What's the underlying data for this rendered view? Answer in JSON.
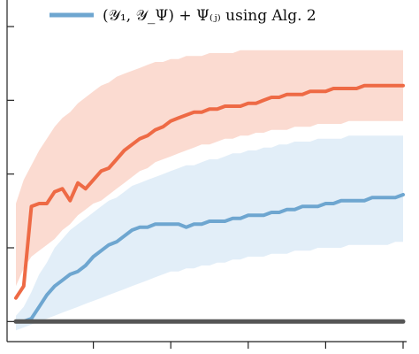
{
  "chart_data": {
    "type": "line",
    "title": "",
    "xlabel": "",
    "ylabel": "",
    "x": [
      0,
      1,
      2,
      3,
      4,
      5,
      6,
      7,
      8,
      9,
      10,
      11,
      12,
      13,
      14,
      15,
      16,
      17,
      18,
      19,
      20,
      21,
      22,
      23,
      24,
      25,
      26,
      27,
      28,
      29,
      30,
      31,
      32,
      33,
      34,
      35,
      36,
      37,
      38,
      39,
      40,
      41,
      42,
      43,
      44,
      45,
      46,
      47,
      48,
      49,
      50
    ],
    "xlim": [
      0,
      50
    ],
    "ylim": [
      -0.05,
      1.0
    ],
    "grid": false,
    "legend": "top",
    "series": [
      {
        "name": "",
        "color": "#ee6a45",
        "band_color": "#f9c3b2",
        "values": [
          0.08,
          0.12,
          0.39,
          0.4,
          0.4,
          0.44,
          0.45,
          0.41,
          0.47,
          0.45,
          0.48,
          0.51,
          0.52,
          0.55,
          0.58,
          0.6,
          0.62,
          0.63,
          0.65,
          0.66,
          0.68,
          0.69,
          0.7,
          0.71,
          0.71,
          0.72,
          0.72,
          0.73,
          0.73,
          0.73,
          0.74,
          0.74,
          0.75,
          0.76,
          0.76,
          0.77,
          0.77,
          0.77,
          0.78,
          0.78,
          0.78,
          0.79,
          0.79,
          0.79,
          0.79,
          0.8,
          0.8,
          0.8,
          0.8,
          0.8,
          0.8
        ],
        "lower": [
          0.12,
          0.18,
          0.22,
          0.24,
          0.26,
          0.28,
          0.31,
          0.33,
          0.36,
          0.38,
          0.4,
          0.41,
          0.43,
          0.45,
          0.47,
          0.49,
          0.51,
          0.52,
          0.54,
          0.55,
          0.56,
          0.57,
          0.58,
          0.59,
          0.6,
          0.6,
          0.61,
          0.62,
          0.62,
          0.63,
          0.63,
          0.64,
          0.64,
          0.65,
          0.65,
          0.65,
          0.66,
          0.66,
          0.66,
          0.67,
          0.67,
          0.67,
          0.67,
          0.68,
          0.68,
          0.68,
          0.68,
          0.68,
          0.68,
          0.68,
          0.68
        ],
        "upper": [
          0.4,
          0.48,
          0.53,
          0.58,
          0.62,
          0.66,
          0.69,
          0.71,
          0.74,
          0.76,
          0.78,
          0.8,
          0.81,
          0.83,
          0.84,
          0.85,
          0.86,
          0.87,
          0.88,
          0.88,
          0.89,
          0.89,
          0.9,
          0.9,
          0.9,
          0.91,
          0.91,
          0.91,
          0.91,
          0.92,
          0.92,
          0.92,
          0.92,
          0.92,
          0.92,
          0.92,
          0.92,
          0.92,
          0.92,
          0.92,
          0.92,
          0.92,
          0.92,
          0.92,
          0.92,
          0.92,
          0.92,
          0.92,
          0.92,
          0.92,
          0.92
        ]
      },
      {
        "name": "(𝒴₁, 𝒴_Ψ) + Ψ₍ⱼ₎ using Alg. 2",
        "color": "#6ea6d0",
        "band_color": "#cfe3f3",
        "values": [
          0.0,
          0.0,
          0.01,
          0.05,
          0.09,
          0.12,
          0.14,
          0.16,
          0.17,
          0.19,
          0.22,
          0.24,
          0.26,
          0.27,
          0.29,
          0.31,
          0.32,
          0.32,
          0.33,
          0.33,
          0.33,
          0.33,
          0.32,
          0.33,
          0.33,
          0.34,
          0.34,
          0.34,
          0.35,
          0.35,
          0.36,
          0.36,
          0.36,
          0.37,
          0.37,
          0.38,
          0.38,
          0.39,
          0.39,
          0.39,
          0.4,
          0.4,
          0.41,
          0.41,
          0.41,
          0.41,
          0.42,
          0.42,
          0.42,
          0.42,
          0.43
        ],
        "lower": [
          -0.03,
          -0.02,
          -0.01,
          0.0,
          0.01,
          0.02,
          0.03,
          0.04,
          0.05,
          0.06,
          0.07,
          0.08,
          0.09,
          0.1,
          0.11,
          0.12,
          0.13,
          0.14,
          0.15,
          0.16,
          0.17,
          0.17,
          0.18,
          0.18,
          0.19,
          0.19,
          0.2,
          0.2,
          0.21,
          0.21,
          0.22,
          0.22,
          0.22,
          0.23,
          0.23,
          0.23,
          0.24,
          0.24,
          0.24,
          0.25,
          0.25,
          0.25,
          0.25,
          0.26,
          0.26,
          0.26,
          0.26,
          0.26,
          0.26,
          0.27,
          0.27
        ],
        "upper": [
          0.02,
          0.05,
          0.1,
          0.16,
          0.2,
          0.25,
          0.28,
          0.31,
          0.33,
          0.35,
          0.37,
          0.39,
          0.41,
          0.42,
          0.44,
          0.46,
          0.47,
          0.48,
          0.49,
          0.5,
          0.51,
          0.52,
          0.53,
          0.53,
          0.54,
          0.55,
          0.55,
          0.56,
          0.57,
          0.57,
          0.58,
          0.58,
          0.59,
          0.59,
          0.6,
          0.6,
          0.61,
          0.61,
          0.61,
          0.62,
          0.62,
          0.62,
          0.62,
          0.63,
          0.63,
          0.63,
          0.63,
          0.63,
          0.63,
          0.63,
          0.63
        ]
      },
      {
        "name": "",
        "color": "#555555",
        "values": [
          0,
          0,
          0,
          0,
          0,
          0,
          0,
          0,
          0,
          0,
          0,
          0,
          0,
          0,
          0,
          0,
          0,
          0,
          0,
          0,
          0,
          0,
          0,
          0,
          0,
          0,
          0,
          0,
          0,
          0,
          0,
          0,
          0,
          0,
          0,
          0,
          0,
          0,
          0,
          0,
          0,
          0,
          0,
          0,
          0,
          0,
          0,
          0,
          0,
          0,
          0
        ]
      }
    ]
  }
}
